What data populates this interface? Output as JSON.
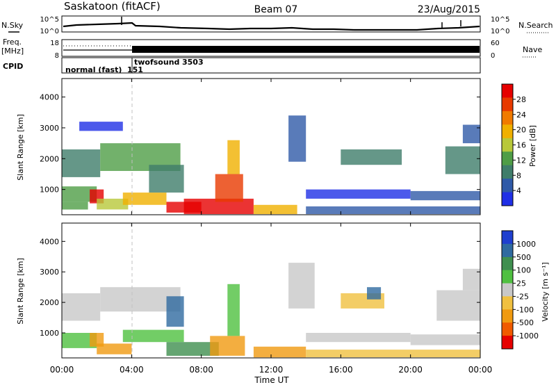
{
  "header": {
    "station": "Saskatoon (fitACF)",
    "beam": "Beam 07",
    "date": "23/Aug/2015"
  },
  "colors": {
    "power_scale": [
      "#1f2fe6",
      "#2f5aa8",
      "#3f7d6a",
      "#4f9d46",
      "#b8c83a",
      "#f0b000",
      "#f07a00",
      "#e83a00",
      "#e60000"
    ],
    "velocity_scale": [
      "#e60000",
      "#f05a00",
      "#f09a10",
      "#f0c040",
      "#c8c8c8",
      "#4fc040",
      "#3f8f4f",
      "#2f6aa0",
      "#1f3fcf"
    ]
  },
  "panels": {
    "nsky": {
      "label_left": "N.Sky",
      "label_right": "N.Search",
      "left_ticks": [
        "10^5",
        "10^0"
      ],
      "right_ticks": [
        "10^5",
        "10^0"
      ]
    },
    "freq": {
      "label_left_1": "Freq.",
      "label_left_2": "[MHz]",
      "label_right": "Nave",
      "left_ticks": [
        "18",
        "8"
      ],
      "right_ticks": [
        "60",
        "0"
      ]
    },
    "cpid": {
      "label": "CPID",
      "mode_1": "normal (fast)",
      "mode_1_id": "151",
      "mode_2": "twofsound",
      "mode_2_id": "3503"
    },
    "power": {
      "ylabel": "Slant Range [km]",
      "cbar_label": "Power [dB]",
      "cbar_ticks": [
        "28",
        "24",
        "20",
        "16",
        "12",
        "8",
        "4"
      ]
    },
    "velocity": {
      "ylabel": "Slant Range [km]",
      "cbar_label": "Velocity [m s⁻¹]",
      "cbar_ticks": [
        "1000",
        "500",
        "100",
        "25",
        "-25",
        "-100",
        "-500",
        "-1000"
      ]
    }
  },
  "xaxis": {
    "label": "Time UT",
    "ticks": [
      "00:00",
      "04:00",
      "08:00",
      "12:00",
      "16:00",
      "20:00",
      "00:00"
    ]
  },
  "chart_data": [
    {
      "type": "heatmap",
      "title": "Power",
      "xlabel": "Time UT",
      "ylabel": "Slant Range [km]",
      "x_range_hours": [
        0,
        24
      ],
      "ylim": [
        180,
        4600
      ],
      "y_ticks": [
        1000,
        2000,
        3000,
        4000
      ],
      "colorbar": {
        "label": "Power [dB]",
        "ticks": [
          28,
          24,
          20,
          16,
          12,
          8,
          4
        ]
      },
      "patches": [
        {
          "t0": 0.0,
          "t1": 2.2,
          "r0": 1400,
          "r1": 2300,
          "v": 10
        },
        {
          "t0": 0.0,
          "t1": 2.0,
          "r0": 600,
          "r1": 1100,
          "v": 14
        },
        {
          "t0": 1.6,
          "t1": 2.4,
          "r0": 550,
          "r1": 1000,
          "v": 27
        },
        {
          "t0": 0.0,
          "t1": 1.5,
          "r0": 350,
          "r1": 600,
          "v": 12
        },
        {
          "t0": 2.0,
          "t1": 3.8,
          "r0": 350,
          "r1": 700,
          "v": 16
        },
        {
          "t0": 2.2,
          "t1": 6.8,
          "r0": 1600,
          "r1": 2500,
          "v": 13
        },
        {
          "t0": 3.5,
          "t1": 6.0,
          "r0": 500,
          "r1": 900,
          "v": 18
        },
        {
          "t0": 5.0,
          "t1": 7.0,
          "r0": 900,
          "r1": 1800,
          "v": 9
        },
        {
          "t0": 6.0,
          "t1": 8.0,
          "r0": 250,
          "r1": 600,
          "v": 27
        },
        {
          "t0": 7.0,
          "t1": 11.0,
          "r0": 200,
          "r1": 700,
          "v": 28
        },
        {
          "t0": 8.8,
          "t1": 10.4,
          "r0": 600,
          "r1": 1500,
          "v": 26
        },
        {
          "t0": 9.5,
          "t1": 10.2,
          "r0": 1500,
          "r1": 2600,
          "v": 20
        },
        {
          "t0": 11.0,
          "t1": 13.5,
          "r0": 200,
          "r1": 500,
          "v": 18
        },
        {
          "t0": 13.0,
          "t1": 14.0,
          "r0": 1900,
          "r1": 3400,
          "v": 6
        },
        {
          "t0": 14.0,
          "t1": 20.0,
          "r0": 700,
          "r1": 1000,
          "v": 5
        },
        {
          "t0": 14.0,
          "t1": 24.0,
          "r0": 200,
          "r1": 450,
          "v": 8
        },
        {
          "t0": 16.0,
          "t1": 19.5,
          "r0": 1800,
          "r1": 2300,
          "v": 9
        },
        {
          "t0": 20.0,
          "t1": 24.0,
          "r0": 650,
          "r1": 950,
          "v": 6
        },
        {
          "t0": 22.0,
          "t1": 24.0,
          "r0": 1500,
          "r1": 2400,
          "v": 11
        },
        {
          "t0": 23.0,
          "t1": 24.0,
          "r0": 2500,
          "r1": 3100,
          "v": 6
        },
        {
          "t0": 1.0,
          "t1": 3.5,
          "r0": 2900,
          "r1": 3200,
          "v": 4
        }
      ]
    },
    {
      "type": "heatmap",
      "title": "Velocity",
      "xlabel": "Time UT",
      "ylabel": "Slant Range [km]",
      "x_range_hours": [
        0,
        24
      ],
      "ylim": [
        180,
        4600
      ],
      "y_ticks": [
        1000,
        2000,
        3000,
        4000
      ],
      "colorbar": {
        "label": "Velocity [m s⁻¹]",
        "ticks": [
          1000,
          500,
          100,
          25,
          -25,
          -100,
          -500,
          -1000
        ]
      },
      "patches": [
        {
          "t0": 0.0,
          "t1": 2.2,
          "r0": 1400,
          "r1": 2300,
          "v": 0
        },
        {
          "t0": 0.0,
          "t1": 2.0,
          "r0": 500,
          "r1": 1000,
          "v": 60
        },
        {
          "t0": 1.6,
          "t1": 2.4,
          "r0": 550,
          "r1": 1000,
          "v": -300
        },
        {
          "t0": 2.0,
          "t1": 4.0,
          "r0": 300,
          "r1": 650,
          "v": -150
        },
        {
          "t0": 2.2,
          "t1": 6.8,
          "r0": 1700,
          "r1": 2500,
          "v": 0
        },
        {
          "t0": 3.5,
          "t1": 7.0,
          "r0": 700,
          "r1": 1100,
          "v": 80
        },
        {
          "t0": 6.0,
          "t1": 7.0,
          "r0": 1200,
          "r1": 2200,
          "v": 700
        },
        {
          "t0": 6.0,
          "t1": 9.0,
          "r0": 250,
          "r1": 700,
          "v": 150
        },
        {
          "t0": 8.5,
          "t1": 10.5,
          "r0": 250,
          "r1": 900,
          "v": -200
        },
        {
          "t0": 9.5,
          "t1": 10.2,
          "r0": 900,
          "r1": 2600,
          "v": 60
        },
        {
          "t0": 11.0,
          "t1": 14.0,
          "r0": 200,
          "r1": 550,
          "v": -200
        },
        {
          "t0": 13.0,
          "t1": 14.5,
          "r0": 1800,
          "r1": 3300,
          "v": 0
        },
        {
          "t0": 14.0,
          "t1": 20.0,
          "r0": 700,
          "r1": 1000,
          "v": 0
        },
        {
          "t0": 14.0,
          "t1": 24.0,
          "r0": 200,
          "r1": 450,
          "v": -80
        },
        {
          "t0": 16.0,
          "t1": 18.5,
          "r0": 1800,
          "r1": 2300,
          "v": -60
        },
        {
          "t0": 17.5,
          "t1": 18.3,
          "r0": 2100,
          "r1": 2500,
          "v": 800
        },
        {
          "t0": 20.0,
          "t1": 24.0,
          "r0": 600,
          "r1": 950,
          "v": 0
        },
        {
          "t0": 21.5,
          "t1": 24.0,
          "r0": 1400,
          "r1": 2400,
          "v": 0
        },
        {
          "t0": 23.0,
          "t1": 24.0,
          "r0": 2400,
          "r1": 3100,
          "v": 0
        }
      ]
    }
  ]
}
